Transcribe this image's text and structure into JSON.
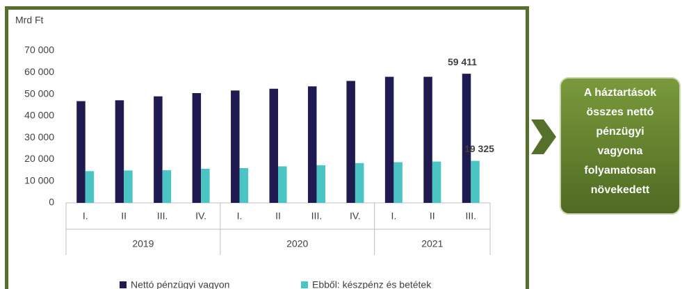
{
  "chart_data": {
    "type": "bar",
    "unit_label": "Mrd Ft",
    "categories": [
      "I.",
      "II",
      "III.",
      "IV.",
      "I.",
      "II",
      "III.",
      "IV.",
      "I.",
      "II",
      "III."
    ],
    "groups": [
      {
        "name": "2019",
        "size": 4
      },
      {
        "name": "2020",
        "size": 4
      },
      {
        "name": "2021",
        "size": 3
      }
    ],
    "series": [
      {
        "name": "Nettó pénzügyi vagyon",
        "color": "#1f1a4f",
        "values": [
          46800,
          47200,
          49000,
          50500,
          51700,
          52500,
          53600,
          56100,
          58000,
          58000,
          59411
        ],
        "value_labels": [
          null,
          null,
          null,
          null,
          null,
          null,
          null,
          null,
          null,
          null,
          "59 411"
        ]
      },
      {
        "name": "Ebből: készpénz és betétek",
        "color": "#4bc4c4",
        "values": [
          14600,
          14900,
          15000,
          15700,
          16000,
          16800,
          17300,
          18300,
          18700,
          19000,
          19325
        ],
        "value_labels": [
          null,
          null,
          null,
          null,
          null,
          null,
          null,
          null,
          null,
          null,
          "19 325"
        ]
      }
    ],
    "ylim": [
      0,
      70000
    ],
    "yticks": [
      0,
      {
        "value": 10000,
        "label": "10 000"
      },
      {
        "value": 20000,
        "label": "20 000"
      },
      {
        "value": 30000,
        "label": "30 000"
      },
      {
        "value": 40000,
        "label": "40 000"
      },
      {
        "value": 50000,
        "label": "50 000"
      },
      {
        "value": 60000,
        "label": "60 000"
      },
      {
        "value": 70000,
        "label": "70 000"
      }
    ],
    "legend": "bottom"
  },
  "callout": {
    "lines": [
      "A háztartások",
      "összes nettó",
      "pénzügyi",
      "vagyona",
      "folyamatosan",
      "növekedett"
    ]
  }
}
